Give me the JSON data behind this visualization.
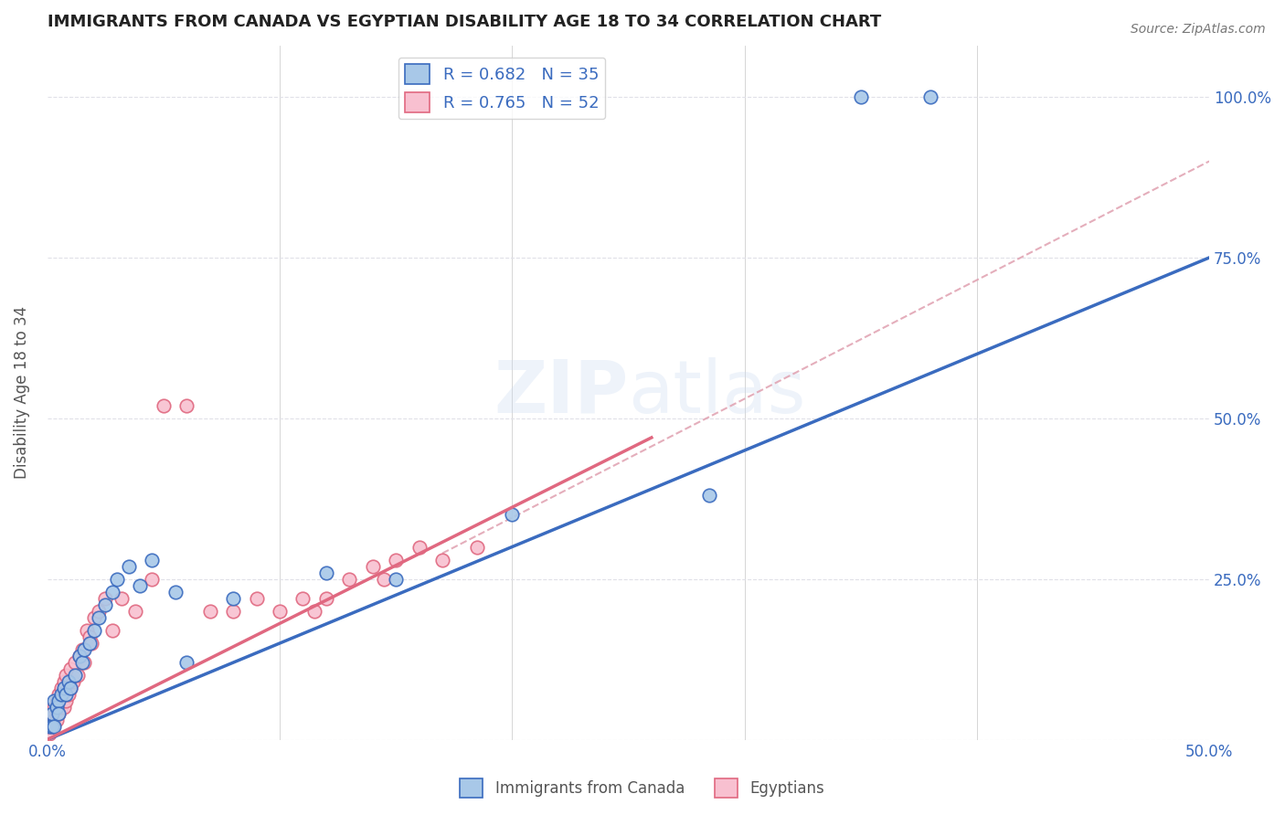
{
  "title": "IMMIGRANTS FROM CANADA VS EGYPTIAN DISABILITY AGE 18 TO 34 CORRELATION CHART",
  "source": "Source: ZipAtlas.com",
  "ylabel": "Disability Age 18 to 34",
  "xmin": 0.0,
  "xmax": 0.5,
  "ymin": 0.0,
  "ymax": 1.08,
  "canada_color": "#a8c8e8",
  "egypt_color": "#f8c0d0",
  "canada_line_color": "#3a6bbf",
  "egypt_line_color": "#e06880",
  "dashed_line_color": "#e0a0b0",
  "R_canada": 0.682,
  "N_canada": 35,
  "R_egypt": 0.765,
  "N_egypt": 52,
  "legend_label_canada": "Immigrants from Canada",
  "legend_label_egypt": "Egyptians",
  "background_color": "#ffffff",
  "grid_color": "#e0e0e8",
  "canada_line_x0": 0.0,
  "canada_line_y0": 0.0,
  "canada_line_x1": 0.5,
  "canada_line_y1": 0.75,
  "egypt_line_x0": 0.0,
  "egypt_line_y0": 0.0,
  "egypt_line_x1": 0.26,
  "egypt_line_y1": 0.47,
  "dashed_line_x0": 0.17,
  "dashed_line_y0": 0.29,
  "dashed_line_x1": 0.5,
  "dashed_line_y1": 0.9,
  "canada_scatter_x": [
    0.001,
    0.002,
    0.002,
    0.003,
    0.003,
    0.004,
    0.005,
    0.005,
    0.006,
    0.007,
    0.008,
    0.009,
    0.01,
    0.012,
    0.014,
    0.015,
    0.016,
    0.018,
    0.02,
    0.022,
    0.025,
    0.028,
    0.03,
    0.035,
    0.04,
    0.045,
    0.055,
    0.06,
    0.08,
    0.12,
    0.15,
    0.2,
    0.285,
    0.35,
    0.38
  ],
  "canada_scatter_y": [
    0.02,
    0.02,
    0.04,
    0.02,
    0.06,
    0.05,
    0.06,
    0.04,
    0.07,
    0.08,
    0.07,
    0.09,
    0.08,
    0.1,
    0.13,
    0.12,
    0.14,
    0.15,
    0.17,
    0.19,
    0.21,
    0.23,
    0.25,
    0.27,
    0.24,
    0.28,
    0.23,
    0.12,
    0.22,
    0.26,
    0.25,
    0.35,
    0.38,
    1.0,
    1.0
  ],
  "egypt_scatter_x": [
    0.001,
    0.001,
    0.001,
    0.002,
    0.002,
    0.003,
    0.003,
    0.004,
    0.004,
    0.005,
    0.005,
    0.006,
    0.006,
    0.007,
    0.007,
    0.008,
    0.008,
    0.009,
    0.01,
    0.01,
    0.011,
    0.012,
    0.013,
    0.014,
    0.015,
    0.016,
    0.017,
    0.018,
    0.019,
    0.02,
    0.022,
    0.025,
    0.028,
    0.032,
    0.038,
    0.045,
    0.05,
    0.06,
    0.07,
    0.08,
    0.09,
    0.1,
    0.11,
    0.115,
    0.12,
    0.13,
    0.14,
    0.145,
    0.15,
    0.16,
    0.17,
    0.185
  ],
  "egypt_scatter_y": [
    0.01,
    0.02,
    0.03,
    0.02,
    0.04,
    0.03,
    0.05,
    0.03,
    0.06,
    0.04,
    0.07,
    0.05,
    0.08,
    0.05,
    0.09,
    0.06,
    0.1,
    0.07,
    0.08,
    0.11,
    0.09,
    0.12,
    0.1,
    0.13,
    0.14,
    0.12,
    0.17,
    0.16,
    0.15,
    0.19,
    0.2,
    0.22,
    0.17,
    0.22,
    0.2,
    0.25,
    0.52,
    0.52,
    0.2,
    0.2,
    0.22,
    0.2,
    0.22,
    0.2,
    0.22,
    0.25,
    0.27,
    0.25,
    0.28,
    0.3,
    0.28,
    0.3
  ]
}
